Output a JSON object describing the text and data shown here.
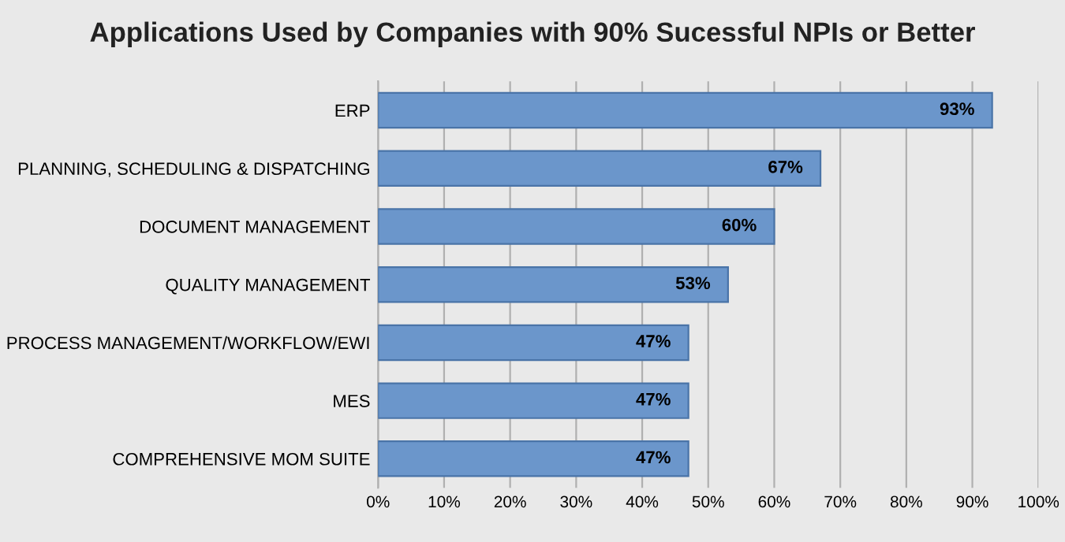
{
  "chart_data": {
    "type": "bar",
    "orientation": "horizontal",
    "title": "Applications Used by Companies with 90% Sucessful NPIs or Better",
    "categories": [
      "ERP",
      "PLANNING, SCHEDULING & DISPATCHING",
      "DOCUMENT MANAGEMENT",
      "QUALITY MANAGEMENT",
      "PROCESS MANAGEMENT/WORKFLOW/EWI",
      "MES",
      "COMPREHENSIVE MOM SUITE"
    ],
    "values": [
      93,
      67,
      60,
      53,
      47,
      47,
      47
    ],
    "value_labels": [
      "93%",
      "67%",
      "60%",
      "53%",
      "47%",
      "47%",
      "47%"
    ],
    "color": "#6b96cb",
    "xlim": [
      0,
      100
    ],
    "xticks": [
      {
        "value": 0,
        "label": "0%"
      },
      {
        "value": 10,
        "label": "10%"
      },
      {
        "value": 20,
        "label": "20%"
      },
      {
        "value": 30,
        "label": "30%"
      },
      {
        "value": 40,
        "label": "40%"
      },
      {
        "value": 50,
        "label": "50%"
      },
      {
        "value": 60,
        "label": "60%"
      },
      {
        "value": 70,
        "label": "70%"
      },
      {
        "value": 80,
        "label": "80%"
      },
      {
        "value": 90,
        "label": "90%"
      },
      {
        "value": 100,
        "label": "100%"
      }
    ],
    "grid": "x"
  }
}
